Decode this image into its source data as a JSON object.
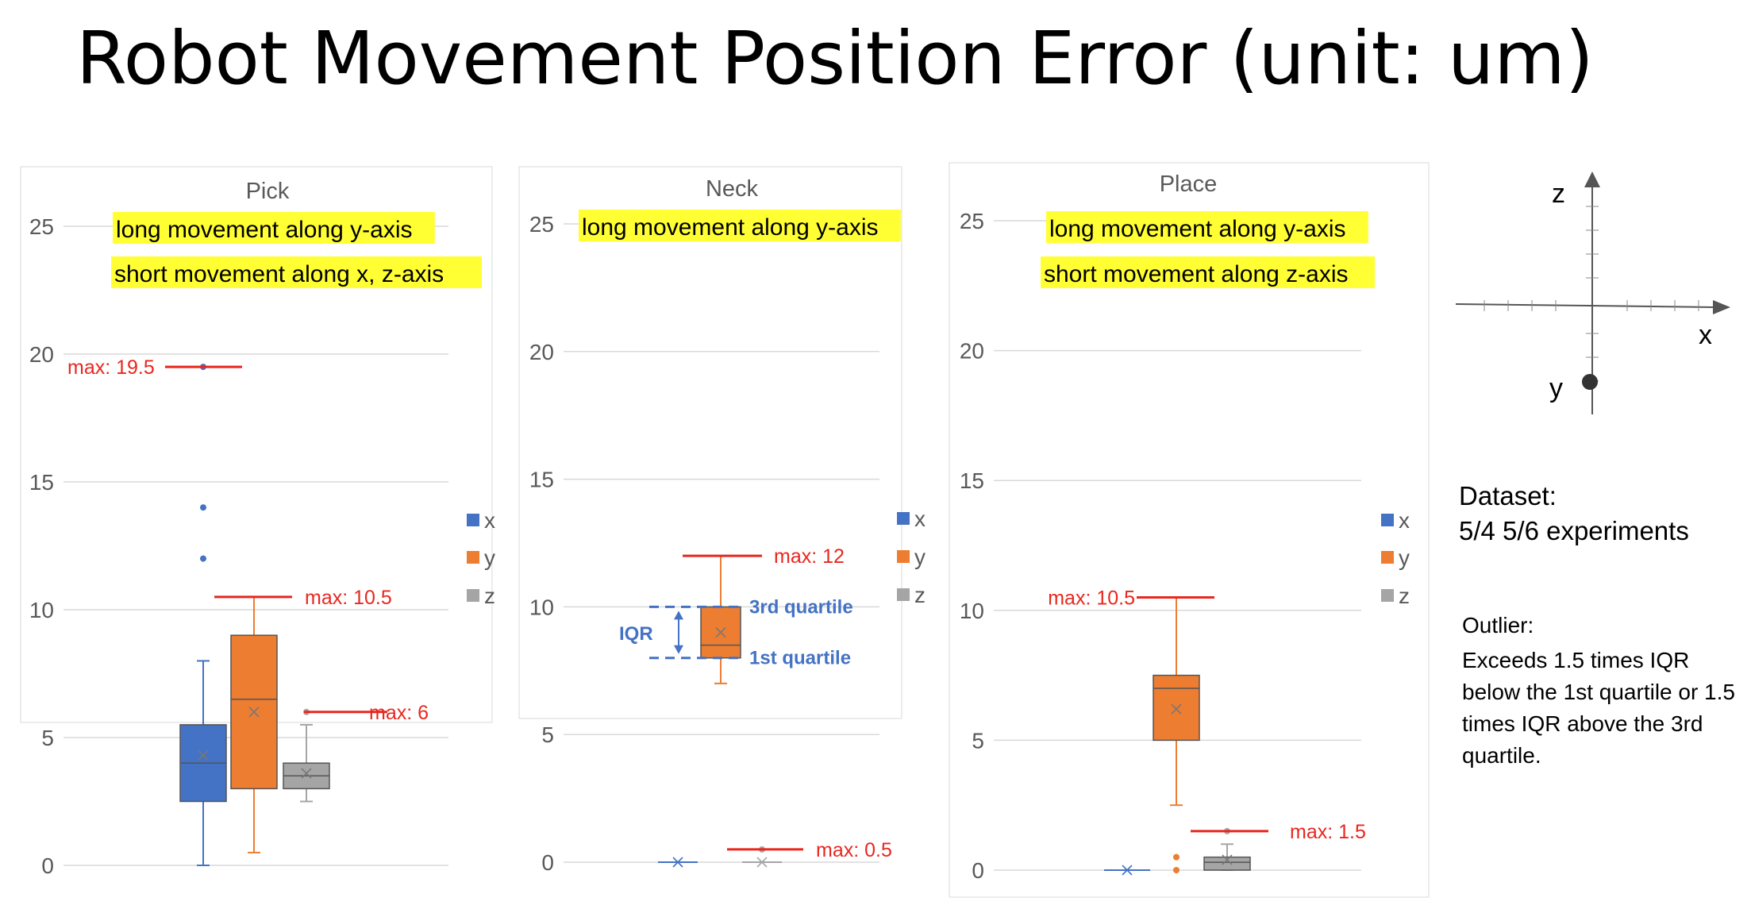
{
  "title": "Robot Movement Position Error (unit: um)",
  "chart_data": [
    {
      "type": "box",
      "title": "Pick",
      "ylim": [
        0,
        25
      ],
      "yticks": [
        0,
        5,
        10,
        15,
        20,
        25
      ],
      "legend": [
        "x",
        "y",
        "z"
      ],
      "legend_position": "right",
      "annotations": [
        "long movement along y-axis",
        "short movement along x, z-axis"
      ],
      "series": [
        {
          "name": "x",
          "color": "#4472c4",
          "min": 0,
          "q1": 2.5,
          "median": 4,
          "q3": 5.5,
          "max": 8,
          "mean": 4.3,
          "outliers": [
            12,
            14,
            19.5
          ]
        },
        {
          "name": "y",
          "color": "#ed7d31",
          "min": 0.5,
          "q1": 3,
          "median": 6.5,
          "q3": 9,
          "max": 10.5,
          "mean": 6,
          "outliers": []
        },
        {
          "name": "z",
          "color": "#a5a5a5",
          "min": 2.5,
          "q1": 3,
          "median": 3.5,
          "q3": 4,
          "max": 5.5,
          "mean": 3.6,
          "outliers": [
            6
          ]
        }
      ],
      "max_labels": [
        {
          "text": "max: 19.5",
          "value": 19.5
        },
        {
          "text": "max:  10.5",
          "value": 10.5
        },
        {
          "text": "max: 6",
          "value": 6
        }
      ]
    },
    {
      "type": "box",
      "title": "Neck",
      "ylim": [
        0,
        25
      ],
      "yticks": [
        0,
        5,
        10,
        15,
        20,
        25
      ],
      "legend": [
        "x",
        "y",
        "z"
      ],
      "legend_position": "right",
      "annotations": [
        "long movement along y-axis"
      ],
      "series": [
        {
          "name": "x",
          "color": "#4472c4",
          "min": 0,
          "q1": 0,
          "median": 0,
          "q3": 0,
          "max": 0,
          "mean": 0,
          "outliers": []
        },
        {
          "name": "y",
          "color": "#ed7d31",
          "min": 7,
          "q1": 8,
          "median": 8.5,
          "q3": 10,
          "max": 12,
          "mean": 9,
          "outliers": []
        },
        {
          "name": "z",
          "color": "#a5a5a5",
          "min": 0,
          "q1": 0,
          "median": 0,
          "q3": 0,
          "max": 0,
          "mean": 0,
          "outliers": [
            0.5
          ]
        }
      ],
      "max_labels": [
        {
          "text": "max: 12",
          "value": 12
        },
        {
          "text": "max: 0.5",
          "value": 0.5
        }
      ],
      "iqr_labels": {
        "iqr": "IQR",
        "q3": "3rd quartile",
        "q1": "1st quartile"
      }
    },
    {
      "type": "box",
      "title": "Place",
      "ylim": [
        0,
        25
      ],
      "yticks": [
        0,
        5,
        10,
        15,
        20,
        25
      ],
      "legend": [
        "x",
        "y",
        "z"
      ],
      "legend_position": "right",
      "annotations": [
        "long movement along y-axis",
        "short movement along z-axis"
      ],
      "series": [
        {
          "name": "x",
          "color": "#4472c4",
          "min": 0,
          "q1": 0,
          "median": 0,
          "q3": 0,
          "max": 0,
          "mean": 0,
          "outliers": []
        },
        {
          "name": "y",
          "color": "#ed7d31",
          "min": 2.5,
          "q1": 5,
          "median": 7,
          "q3": 7.5,
          "max": 10.5,
          "mean": 6.2,
          "outliers": [
            0,
            0.5
          ]
        },
        {
          "name": "z",
          "color": "#a5a5a5",
          "min": 0,
          "q1": 0,
          "median": 0.3,
          "q3": 0.5,
          "max": 1,
          "mean": 0.4,
          "outliers": [
            1.5
          ]
        }
      ],
      "max_labels": [
        {
          "text": "max: 10.5",
          "value": 10.5
        },
        {
          "text": "max: 1.5",
          "value": 1.5
        }
      ]
    }
  ],
  "axes_diagram": {
    "z": "z",
    "x": "x",
    "y": "y"
  },
  "dataset": {
    "label": "Dataset:",
    "value": "5/4 5/6 experiments"
  },
  "outlier": {
    "label": "Outlier:",
    "text": "Exceeds 1.5 times IQR below the 1st quartile or 1.5 times IQR above the 3rd quartile."
  }
}
